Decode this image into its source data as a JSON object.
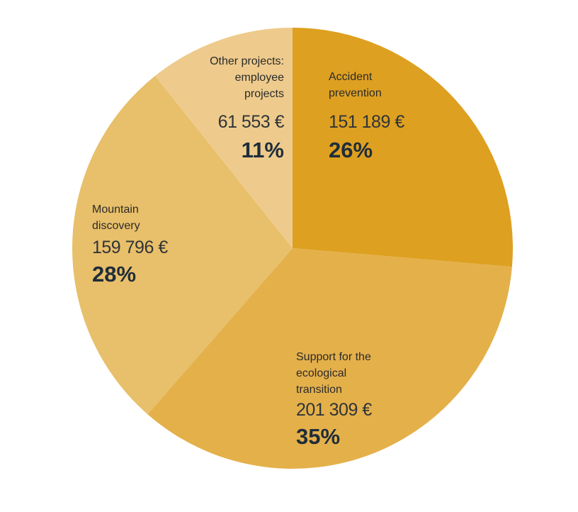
{
  "chart_data": {
    "type": "pie",
    "categories": [
      "Accident prevention",
      "Support for the ecological transition",
      "Mountain discovery",
      "Other projects: employee projects"
    ],
    "values": [
      151189,
      201309,
      159796,
      61553
    ],
    "value_labels": [
      "151 189 €",
      "201 309 €",
      "159 796 €",
      "61 553 €"
    ],
    "shares": [
      {
        "value": 26,
        "label": "26%"
      },
      {
        "value": 35,
        "label": "35%"
      },
      {
        "value": 28,
        "label": "28%"
      },
      {
        "value": 11,
        "label": "11%"
      }
    ],
    "colors": [
      "#dea020",
      "#e4b04a",
      "#e8bf6a",
      "#eecb8c"
    ]
  }
}
